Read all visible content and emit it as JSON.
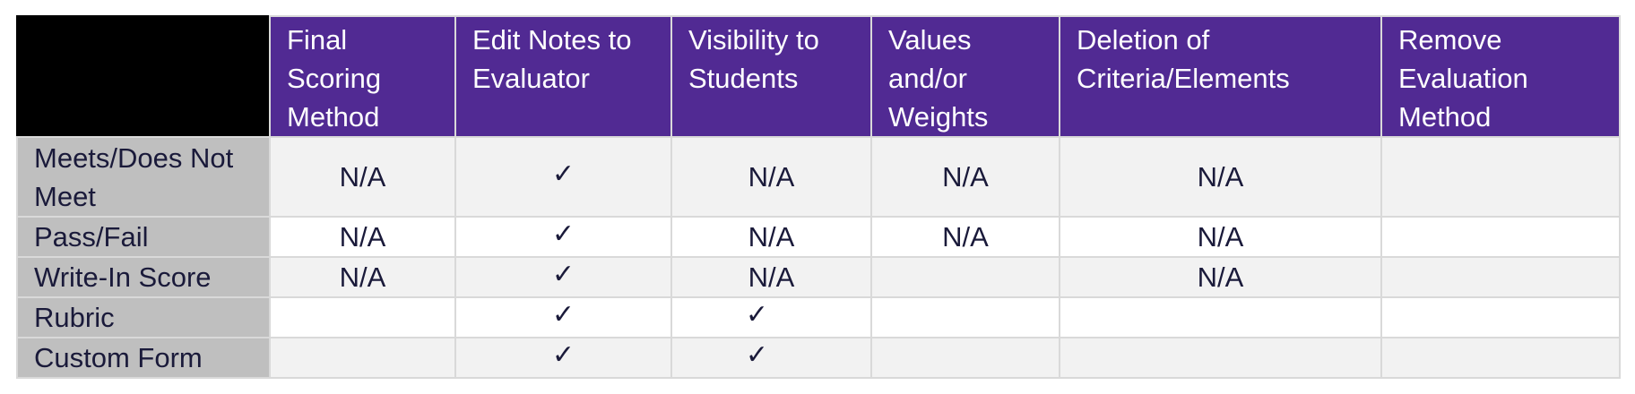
{
  "headers": [
    "",
    "Final Scoring Method",
    "Edit Notes to Evaluator",
    "Visibility to Students",
    "Values and/or Weights",
    "Deletion of Criteria/Elements",
    "Remove Evaluation Method"
  ],
  "rows": [
    {
      "label": "Meets/Does Not Meet",
      "cells": [
        "N/A",
        "✓",
        "N/A",
        "N/A",
        "N/A",
        ""
      ]
    },
    {
      "label": "Pass/Fail",
      "cells": [
        "N/A",
        "✓",
        "N/A",
        "N/A",
        "N/A",
        ""
      ]
    },
    {
      "label": "Write-In Score",
      "cells": [
        "N/A",
        "✓",
        "N/A",
        "",
        "N/A",
        ""
      ]
    },
    {
      "label": "Rubric",
      "cells": [
        "",
        "✓",
        "✓",
        "",
        "",
        ""
      ]
    },
    {
      "label": "Custom Form",
      "cells": [
        "",
        "✓",
        "✓",
        "",
        "",
        ""
      ]
    }
  ],
  "colors": {
    "header_bg": "#512a93",
    "header_text": "#ffffff",
    "corner_bg": "#000000",
    "row_label_bg": "#bfbfbf",
    "shaded_row_bg": "#f2f2f2",
    "border": "#d9d9d9"
  },
  "icons": {
    "check": "check-icon"
  }
}
